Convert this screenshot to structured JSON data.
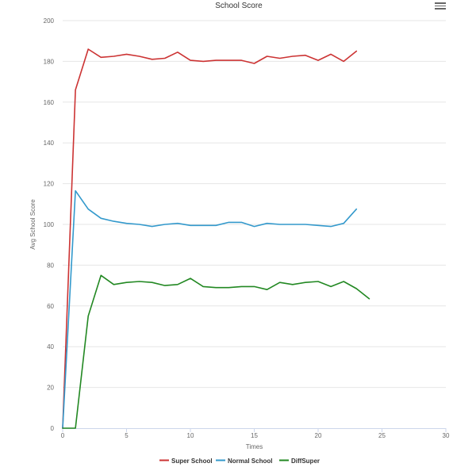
{
  "chart_data": {
    "type": "line",
    "title": "School Score",
    "xlabel": "Times",
    "ylabel": "Avg School Score",
    "xlim": [
      0,
      30
    ],
    "ylim": [
      0,
      200
    ],
    "xticks": [
      "0",
      "5",
      "10",
      "15",
      "20",
      "25",
      "30"
    ],
    "yticks": [
      "0",
      "20",
      "40",
      "60",
      "80",
      "100",
      "120",
      "140",
      "160",
      "180",
      "200"
    ],
    "grid": true,
    "legend_position": "bottom-center",
    "series": [
      {
        "name": "Super School",
        "color": "#cc3333",
        "x": [
          0,
          1,
          2,
          3,
          4,
          5,
          6,
          7,
          8,
          9,
          10,
          11,
          12,
          13,
          14,
          15,
          16,
          17,
          18,
          19,
          20,
          21,
          22,
          23
        ],
        "y": [
          0,
          166,
          186,
          182,
          182.5,
          183.5,
          182.5,
          181,
          181.5,
          184.5,
          180.5,
          180,
          180.5,
          180.5,
          180.5,
          179,
          182.5,
          181.5,
          182.5,
          183,
          180.5,
          183.5,
          180,
          185
        ]
      },
      {
        "name": "Normal School",
        "color": "#3399cc",
        "x": [
          0,
          1,
          2,
          3,
          4,
          5,
          6,
          7,
          8,
          9,
          10,
          11,
          12,
          13,
          14,
          15,
          16,
          17,
          18,
          19,
          20,
          21,
          22,
          23
        ],
        "y": [
          0,
          116.5,
          107.5,
          103,
          101.5,
          100.5,
          100,
          99,
          100,
          100.5,
          99.5,
          99.5,
          99.5,
          101,
          101,
          99,
          100.5,
          100,
          100,
          100,
          99.5,
          99,
          100.5,
          107.5
        ]
      },
      {
        "name": "DiffSuper",
        "color": "#228822",
        "x": [
          0,
          1,
          2,
          3,
          4,
          5,
          6,
          7,
          8,
          9,
          10,
          11,
          12,
          13,
          14,
          15,
          16,
          17,
          18,
          19,
          20,
          21,
          22,
          23,
          24
        ],
        "y": [
          0,
          0,
          55,
          75,
          70.5,
          71.5,
          72,
          71.5,
          70,
          70.5,
          73.5,
          69.5,
          69,
          69,
          69.5,
          69.5,
          68,
          71.5,
          70.5,
          71.5,
          72,
          69.5,
          72,
          68.5,
          63.5
        ]
      }
    ]
  },
  "menu_icon": "hamburger-menu-icon"
}
